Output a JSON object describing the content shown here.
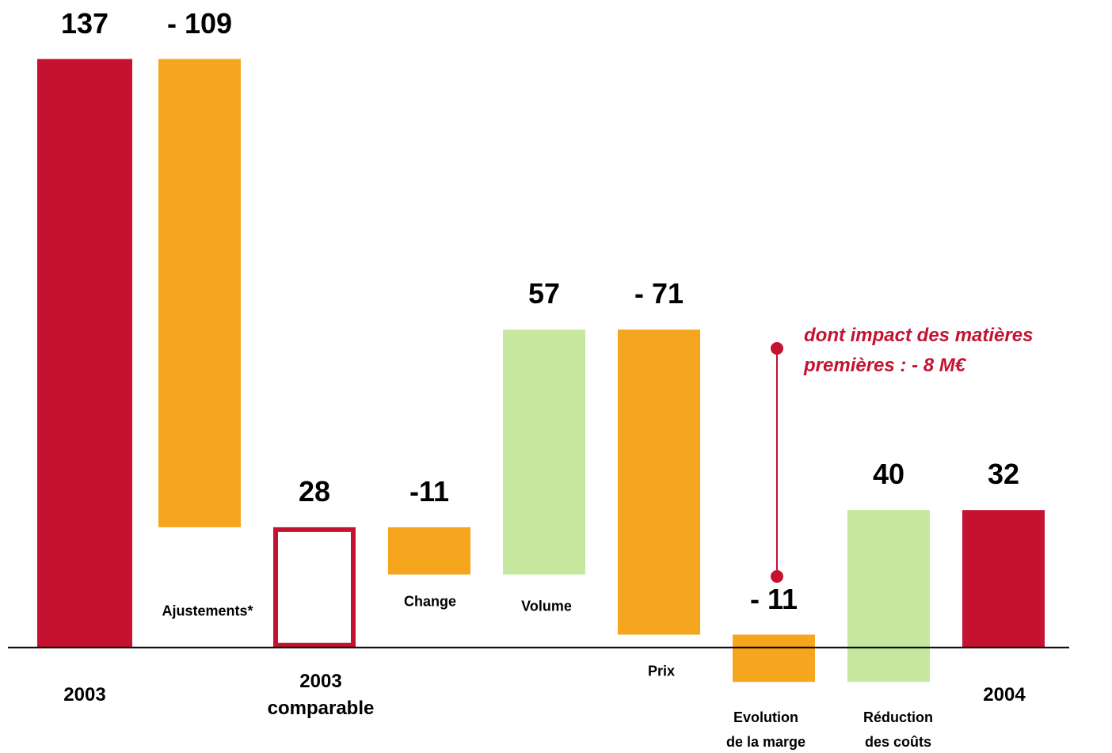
{
  "chart_data": {
    "type": "waterfall",
    "categories": [
      "2003",
      "Ajustements*",
      "2003\ncomparable",
      "Change",
      "Volume",
      "Prix",
      "Evolution\nde la marge",
      "Réduction\ndes coûts",
      "2004"
    ],
    "values": [
      137,
      -109,
      28,
      -11,
      57,
      -71,
      -11,
      40,
      32
    ],
    "value_labels": [
      "137",
      "- 109",
      "28",
      "-11",
      "57",
      "- 71",
      "- 11",
      "40",
      "32"
    ],
    "bar_kinds": [
      "total",
      "change",
      "total-outline",
      "change",
      "change",
      "change",
      "change",
      "change",
      "total"
    ],
    "colors": [
      "#c41230",
      "#f6a51e",
      "#c41230",
      "#f6a51e",
      "#c6e89e",
      "#f6a51e",
      "#f6a51e",
      "#c6e89e",
      "#c41230"
    ],
    "ylim": [
      -24,
      150
    ],
    "annotation": [
      "dont impact des matières",
      "premières : - 8 M€"
    ],
    "annotation_color": "#c41230"
  }
}
